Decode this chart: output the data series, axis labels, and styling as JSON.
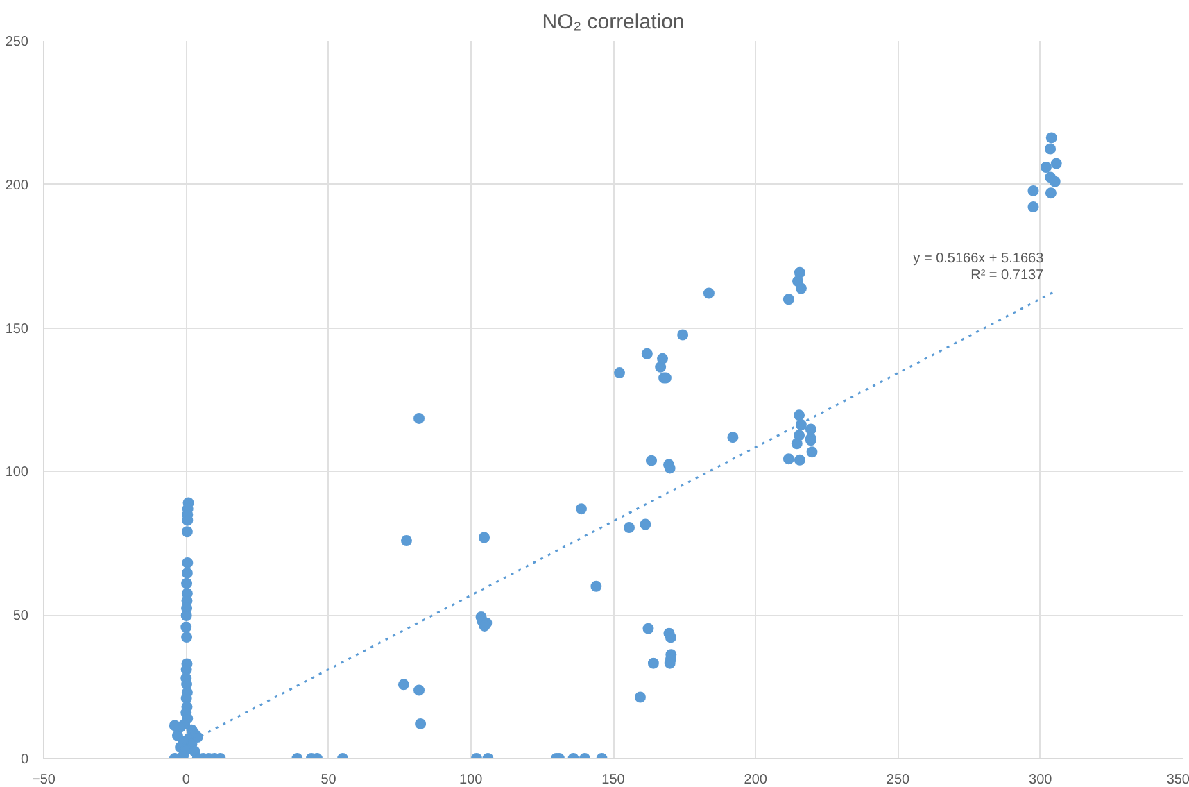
{
  "chart_data": {
    "type": "scatter",
    "title": "NO₂ correlation",
    "xlim": [
      -50,
      350
    ],
    "xticks": [
      -50,
      0,
      50,
      100,
      150,
      200,
      250,
      300,
      350
    ],
    "ylim": [
      0,
      250
    ],
    "yticks": [
      0,
      50,
      100,
      150,
      200,
      250
    ],
    "grid": true,
    "series": [
      {
        "color": "#5b9bd5",
        "marker": "circle",
        "x": [
          0.8,
          0.6,
          0.5,
          0.5,
          0.4,
          0.5,
          0.4,
          0.2,
          0.4,
          0.3,
          0.2,
          0.1,
          0,
          0.2,
          0.3,
          0.1,
          0,
          0.2,
          0.4,
          0.1,
          0.3,
          0,
          0.5,
          -0.5,
          -2,
          -4,
          2,
          3,
          -3,
          1,
          4,
          -1,
          2,
          -2,
          0,
          3,
          -1,
          -4,
          4,
          6,
          8,
          10,
          12,
          39,
          44,
          46,
          55,
          102,
          106,
          130,
          131,
          136,
          140,
          146,
          81.8,
          77.4,
          76.4,
          81.8,
          82.3,
          104.7,
          103.6,
          104,
          105.5,
          104.8,
          138.8,
          144,
          183.6,
          174.4,
          161.9,
          167.3,
          166.6,
          167.8,
          168.5,
          152.2,
          192,
          163.4,
          169.5,
          169.9,
          155.6,
          161.3,
          162.3,
          169.6,
          170.2,
          170.3,
          170.2,
          169.9,
          164.1,
          159.5,
          211.6,
          214.8,
          215.5,
          216,
          215.3,
          216,
          219.4,
          219.4,
          215.3,
          219.4,
          214.5,
          211.6,
          215.5,
          219.8,
          297.5,
          297.5,
          303.7,
          303.9,
          303.5,
          302,
          305.6,
          303.5,
          305.1
        ],
        "values": [
          89.1,
          87,
          85,
          83,
          79,
          68.2,
          64.6,
          61,
          57.5,
          55,
          52.4,
          49.8,
          45.8,
          42.3,
          33,
          31,
          28,
          26,
          23,
          21,
          18,
          16,
          14,
          12,
          11,
          11.5,
          10,
          8.5,
          8,
          7,
          7.5,
          6,
          5,
          4,
          3,
          2.5,
          1,
          0,
          0,
          0,
          0,
          0,
          0,
          0,
          0,
          0,
          0,
          0,
          0,
          0,
          0,
          0,
          0,
          0,
          118.5,
          75.9,
          25.8,
          23.8,
          12.1,
          77,
          49.3,
          48,
          47.2,
          46.2,
          87,
          60,
          162.1,
          147.6,
          141,
          139.3,
          136.4,
          132.6,
          132.6,
          134.4,
          111.9,
          103.8,
          102.4,
          101.2,
          80.5,
          81.6,
          45.3,
          43.6,
          42.2,
          36.2,
          34.7,
          33.2,
          33.2,
          21.4,
          160,
          166.3,
          169.3,
          163.8,
          119.6,
          116.3,
          114.7,
          111.5,
          112.6,
          110.9,
          109.7,
          104.4,
          104,
          106.8,
          197.8,
          192.2,
          197,
          216.3,
          212.4,
          206,
          207.3,
          202.5,
          201
        ]
      },
      {
        "type": "line",
        "color": "#5b9bd5",
        "line_style": "dotted",
        "x": [
          0,
          305
        ],
        "values": [
          5.2,
          162.7
        ]
      }
    ],
    "annotations": [
      "y = 0.5166x + 5.1663",
      "R² = 0.7137"
    ]
  }
}
